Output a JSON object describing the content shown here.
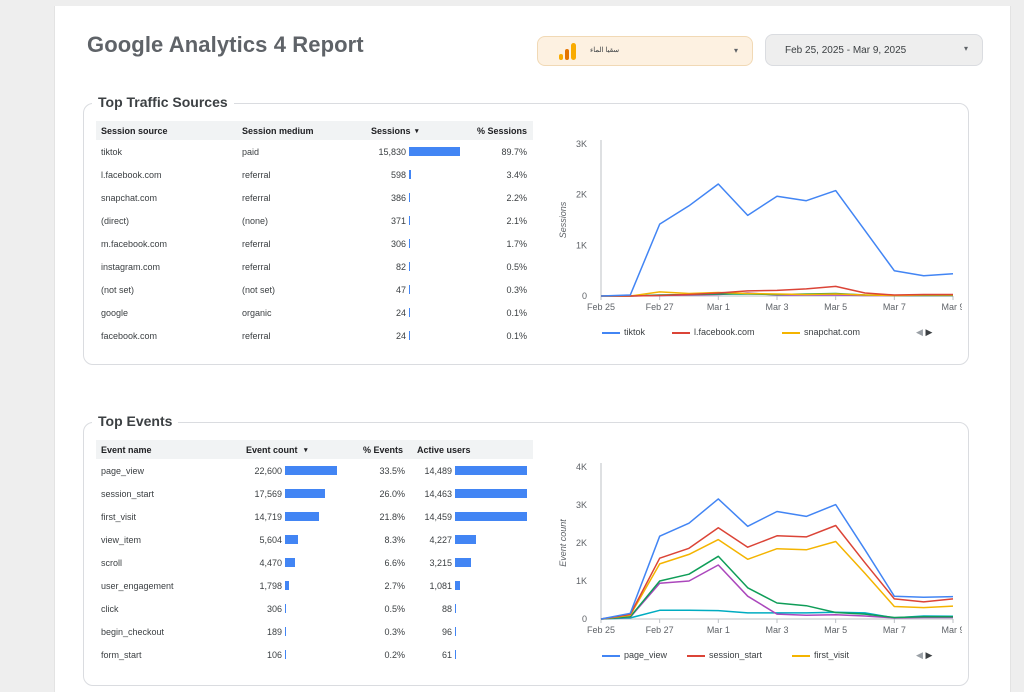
{
  "title": "Google Analytics 4 Report",
  "account_selector": {
    "name": "سقيا الماء",
    "caret": "▾"
  },
  "date_selector": {
    "label": "Feb 25, 2025 - Mar 9, 2025",
    "caret": "▾"
  },
  "colors": {
    "blue": "#4285f4",
    "red": "#db4437",
    "yellow": "#f4b400",
    "green": "#0f9d58",
    "purple": "#ab47bc",
    "teal": "#00acc1"
  },
  "traffic": {
    "title": "Top Traffic Sources",
    "headers": {
      "source": "Session source",
      "medium": "Session medium",
      "sessions": "Sessions",
      "sort": "▾",
      "pct": "% Sessions"
    },
    "rows": [
      {
        "source": "tiktok",
        "medium": "paid",
        "sessions": "15,830",
        "value": 15830,
        "pct": "89.7%"
      },
      {
        "source": "l.facebook.com",
        "medium": "referral",
        "sessions": "598",
        "value": 598,
        "pct": "3.4%"
      },
      {
        "source": "snapchat.com",
        "medium": "referral",
        "sessions": "386",
        "value": 386,
        "pct": "2.2%"
      },
      {
        "source": "(direct)",
        "medium": "(none)",
        "sessions": "371",
        "value": 371,
        "pct": "2.1%"
      },
      {
        "source": "m.facebook.com",
        "medium": "referral",
        "sessions": "306",
        "value": 306,
        "pct": "1.7%"
      },
      {
        "source": "instagram.com",
        "medium": "referral",
        "sessions": "82",
        "value": 82,
        "pct": "0.5%"
      },
      {
        "source": "(not set)",
        "medium": "(not set)",
        "sessions": "47",
        "value": 47,
        "pct": "0.3%"
      },
      {
        "source": "google",
        "medium": "organic",
        "sessions": "24",
        "value": 24,
        "pct": "0.1%"
      },
      {
        "source": "facebook.com",
        "medium": "referral",
        "sessions": "24",
        "value": 24,
        "pct": "0.1%"
      }
    ]
  },
  "events": {
    "title": "Top Events",
    "headers": {
      "name": "Event name",
      "count": "Event count",
      "sort": "▾",
      "pct": "% Events",
      "users": "Active users"
    },
    "rows": [
      {
        "name": "page_view",
        "count": "22,600",
        "count_v": 22600,
        "pct": "33.5%",
        "users": "14,489",
        "users_v": 14489
      },
      {
        "name": "session_start",
        "count": "17,569",
        "count_v": 17569,
        "pct": "26.0%",
        "users": "14,463",
        "users_v": 14463
      },
      {
        "name": "first_visit",
        "count": "14,719",
        "count_v": 14719,
        "pct": "21.8%",
        "users": "14,459",
        "users_v": 14459
      },
      {
        "name": "view_item",
        "count": "5,604",
        "count_v": 5604,
        "pct": "8.3%",
        "users": "4,227",
        "users_v": 4227
      },
      {
        "name": "scroll",
        "count": "4,470",
        "count_v": 4470,
        "pct": "6.6%",
        "users": "3,215",
        "users_v": 3215
      },
      {
        "name": "user_engagement",
        "count": "1,798",
        "count_v": 1798,
        "pct": "2.7%",
        "users": "1,081",
        "users_v": 1081
      },
      {
        "name": "click",
        "count": "306",
        "count_v": 306,
        "pct": "0.5%",
        "users": "88",
        "users_v": 88
      },
      {
        "name": "begin_checkout",
        "count": "189",
        "count_v": 189,
        "pct": "0.3%",
        "users": "96",
        "users_v": 96
      },
      {
        "name": "form_start",
        "count": "106",
        "count_v": 106,
        "pct": "0.2%",
        "users": "61",
        "users_v": 61
      }
    ]
  },
  "chart_data": [
    {
      "type": "line",
      "ylabel": "Sessions",
      "ylim": [
        0,
        3000
      ],
      "yticks": [
        "0",
        "1K",
        "2K",
        "3K"
      ],
      "x": [
        "Feb 25",
        "Feb 26",
        "Feb 27",
        "Feb 28",
        "Mar 1",
        "Mar 2",
        "Mar 3",
        "Mar 4",
        "Mar 5",
        "Mar 6",
        "Mar 7",
        "Mar 8",
        "Mar 9"
      ],
      "xticks": [
        "Feb 25",
        "Feb 27",
        "Mar 1",
        "Mar 3",
        "Mar 5",
        "Mar 7",
        "Mar 9"
      ],
      "series": [
        {
          "name": "tiktok",
          "color": "#4285f4",
          "values": [
            0,
            20,
            1420,
            1780,
            2210,
            1590,
            1970,
            1880,
            2080,
            1290,
            500,
            400,
            440
          ]
        },
        {
          "name": "l.facebook.com",
          "color": "#db4437",
          "values": [
            0,
            0,
            10,
            30,
            60,
            100,
            110,
            140,
            190,
            60,
            20,
            30,
            30
          ]
        },
        {
          "name": "snapchat.com",
          "color": "#f4b400",
          "values": [
            0,
            0,
            80,
            50,
            70,
            50,
            40,
            30,
            40,
            20,
            10,
            20,
            20
          ]
        },
        {
          "color": "#0f9d58",
          "values": [
            0,
            0,
            20,
            30,
            40,
            40,
            30,
            40,
            50,
            20,
            10,
            10,
            10
          ]
        },
        {
          "color": "#ab47bc",
          "values": [
            0,
            0,
            10,
            20,
            30,
            60,
            20,
            20,
            20,
            10,
            10,
            10,
            10
          ]
        }
      ],
      "legend_position": "bottom-left",
      "pager": {
        "prev": "◀",
        "next": "▶"
      }
    },
    {
      "type": "line",
      "ylabel": "Event count",
      "ylim": [
        0,
        4000
      ],
      "yticks": [
        "0",
        "1K",
        "2K",
        "3K",
        "4K"
      ],
      "x": [
        "Feb 25",
        "Feb 26",
        "Feb 27",
        "Feb 28",
        "Mar 1",
        "Mar 2",
        "Mar 3",
        "Mar 4",
        "Mar 5",
        "Mar 6",
        "Mar 7",
        "Mar 8",
        "Mar 9"
      ],
      "xticks": [
        "Feb 25",
        "Feb 27",
        "Mar 1",
        "Mar 3",
        "Mar 5",
        "Mar 7",
        "Mar 9"
      ],
      "series": [
        {
          "name": "page_view",
          "color": "#4285f4",
          "values": [
            0,
            150,
            2180,
            2520,
            3160,
            2440,
            2830,
            2700,
            3010,
            1820,
            600,
            570,
            590
          ]
        },
        {
          "name": "session_start",
          "color": "#db4437",
          "values": [
            0,
            120,
            1600,
            1860,
            2400,
            1890,
            2190,
            2160,
            2460,
            1480,
            530,
            450,
            530
          ]
        },
        {
          "name": "first_visit",
          "color": "#f4b400",
          "values": [
            0,
            100,
            1450,
            1700,
            2090,
            1570,
            1850,
            1820,
            2040,
            1200,
            330,
            300,
            340
          ]
        },
        {
          "color": "#0f9d58",
          "values": [
            0,
            60,
            1000,
            1180,
            1650,
            820,
            420,
            350,
            170,
            130,
            40,
            60,
            60
          ]
        },
        {
          "color": "#ab47bc",
          "values": [
            0,
            50,
            940,
            1000,
            1420,
            600,
            130,
            100,
            110,
            80,
            30,
            40,
            40
          ]
        },
        {
          "color": "#00acc1",
          "values": [
            0,
            30,
            230,
            230,
            220,
            160,
            160,
            160,
            180,
            160,
            30,
            80,
            70
          ]
        }
      ],
      "legend_position": "bottom-left",
      "pager": {
        "prev": "◀",
        "next": "▶"
      }
    }
  ]
}
